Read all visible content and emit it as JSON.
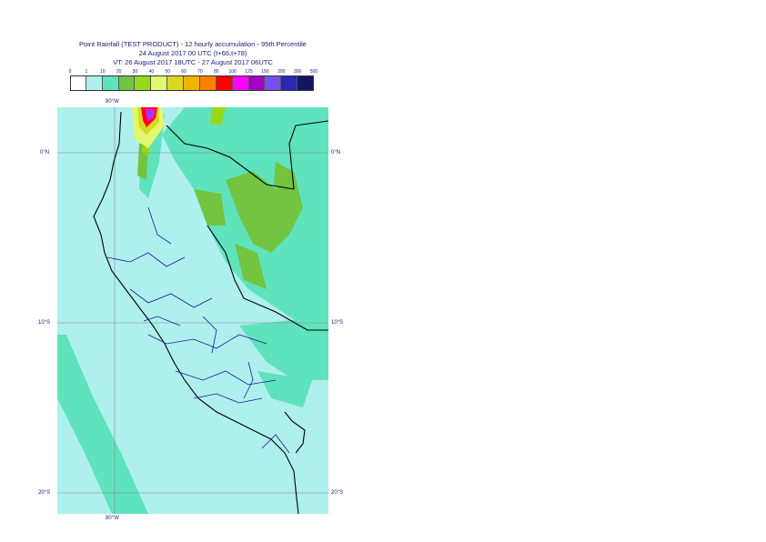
{
  "header": {
    "line1": "Point Rainfall (TEST PRODUCT) - 12 hourly accumulation - 95th Percentile",
    "line2": "24 August 2017 00 UTC (t+66,t+78)",
    "line3": "VT: 26 August 2017 18UTC - 27 August 2017 06UTC"
  },
  "legend": {
    "labels": [
      "0",
      "1",
      "10",
      "20",
      "30",
      "40",
      "50",
      "60",
      "70",
      "80",
      "100",
      "125",
      "150",
      "200",
      "300",
      "500"
    ],
    "colors": [
      "#ffffff",
      "#aef0ee",
      "#5fe3bd",
      "#73c440",
      "#96d81a",
      "#e2f86a",
      "#d8d823",
      "#f0b400",
      "#ff7f00",
      "#ff0000",
      "#ff00ff",
      "#a600c8",
      "#7450f0",
      "#2828b4",
      "#141464"
    ]
  },
  "axes": {
    "lon_top": "80°W",
    "lon_bottom": "80°W",
    "lat_left": [
      "0°N",
      "10°S",
      "20°S"
    ],
    "lat_right": [
      "0°N",
      "10°S",
      "20°S"
    ]
  }
}
